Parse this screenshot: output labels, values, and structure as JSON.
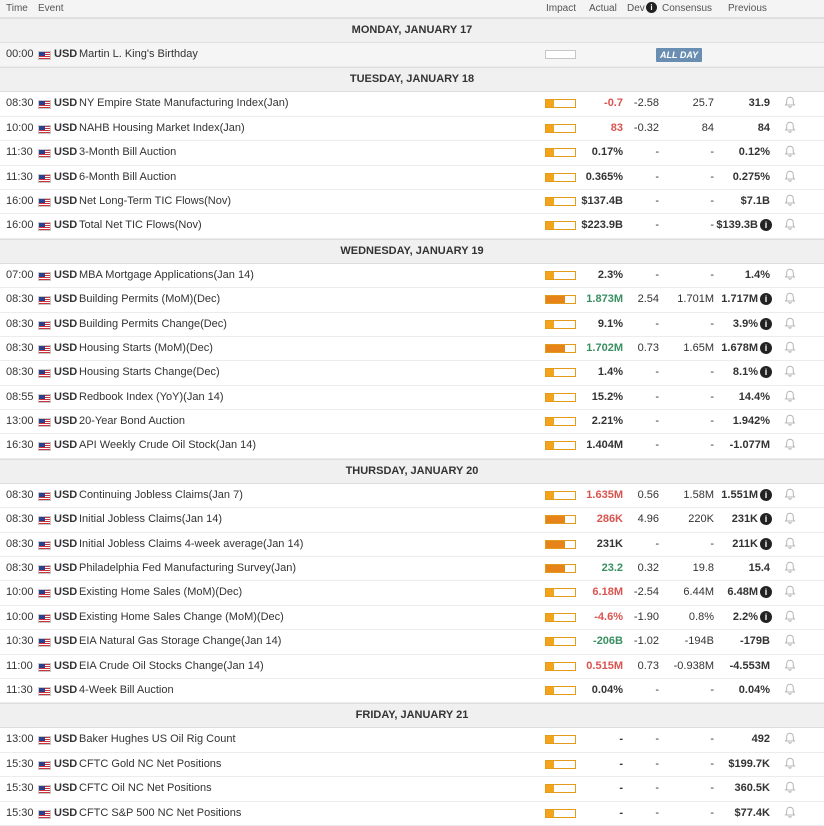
{
  "header": {
    "time": "Time",
    "event": "Event",
    "impact": "Impact",
    "actual": "Actual",
    "dev": "Dev",
    "consensus": "Consensus",
    "previous": "Previous"
  },
  "days": [
    {
      "label": "MONDAY, JANUARY 17",
      "events": [
        {
          "time": "00:00",
          "currency": "USD",
          "event": "Martin L. King's Birthday",
          "impact": "none",
          "allday": "ALL DAY",
          "bell": false
        }
      ]
    },
    {
      "label": "TUESDAY, JANUARY 18",
      "events": [
        {
          "time": "08:30",
          "currency": "USD",
          "event": "NY Empire State Manufacturing Index(Jan)",
          "impact": "low",
          "actual": "-0.7",
          "actual_color": "red",
          "dev": "-2.58",
          "consensus": "25.7",
          "previous": "31.9",
          "bell": true
        },
        {
          "time": "10:00",
          "currency": "USD",
          "event": "NAHB Housing Market Index(Jan)",
          "impact": "low",
          "actual": "83",
          "actual_color": "red",
          "dev": "-0.32",
          "consensus": "84",
          "previous": "84",
          "bell": true
        },
        {
          "time": "11:30",
          "currency": "USD",
          "event": "3-Month Bill Auction",
          "impact": "low",
          "actual": "0.17%",
          "actual_color": "black",
          "dev": "-",
          "consensus": "-",
          "previous": "0.12%",
          "bell": true
        },
        {
          "time": "11:30",
          "currency": "USD",
          "event": "6-Month Bill Auction",
          "impact": "low",
          "actual": "0.365%",
          "actual_color": "black",
          "dev": "-",
          "consensus": "-",
          "previous": "0.275%",
          "bell": true
        },
        {
          "time": "16:00",
          "currency": "USD",
          "event": "Net Long-Term TIC Flows(Nov)",
          "impact": "low",
          "actual": "$137.4B",
          "actual_color": "black",
          "dev": "-",
          "consensus": "-",
          "previous": "$7.1B",
          "bell": true
        },
        {
          "time": "16:00",
          "currency": "USD",
          "event": "Total Net TIC Flows(Nov)",
          "impact": "low",
          "actual": "$223.9B",
          "actual_color": "black",
          "dev": "-",
          "consensus": "-",
          "previous": "$139.3B",
          "info": true,
          "bell": true
        }
      ]
    },
    {
      "label": "WEDNESDAY, JANUARY 19",
      "events": [
        {
          "time": "07:00",
          "currency": "USD",
          "event": "MBA Mortgage Applications(Jan 14)",
          "impact": "low",
          "actual": "2.3%",
          "actual_color": "black",
          "dev": "-",
          "consensus": "-",
          "previous": "1.4%",
          "bell": true
        },
        {
          "time": "08:30",
          "currency": "USD",
          "event": "Building Permits (MoM)(Dec)",
          "impact": "med",
          "actual": "1.873M",
          "actual_color": "green",
          "dev": "2.54",
          "consensus": "1.701M",
          "previous": "1.717M",
          "info": true,
          "bell": true
        },
        {
          "time": "08:30",
          "currency": "USD",
          "event": "Building Permits Change(Dec)",
          "impact": "low",
          "actual": "9.1%",
          "actual_color": "black",
          "dev": "-",
          "consensus": "-",
          "previous": "3.9%",
          "info": true,
          "bell": true
        },
        {
          "time": "08:30",
          "currency": "USD",
          "event": "Housing Starts (MoM)(Dec)",
          "impact": "med",
          "actual": "1.702M",
          "actual_color": "green",
          "dev": "0.73",
          "consensus": "1.65M",
          "previous": "1.678M",
          "info": true,
          "bell": true
        },
        {
          "time": "08:30",
          "currency": "USD",
          "event": "Housing Starts Change(Dec)",
          "impact": "low",
          "actual": "1.4%",
          "actual_color": "black",
          "dev": "-",
          "consensus": "-",
          "previous": "8.1%",
          "info": true,
          "bell": true
        },
        {
          "time": "08:55",
          "currency": "USD",
          "event": "Redbook Index (YoY)(Jan 14)",
          "impact": "low",
          "actual": "15.2%",
          "actual_color": "black",
          "dev": "-",
          "consensus": "-",
          "previous": "14.4%",
          "bell": true
        },
        {
          "time": "13:00",
          "currency": "USD",
          "event": "20-Year Bond Auction",
          "impact": "low",
          "actual": "2.21%",
          "actual_color": "black",
          "dev": "-",
          "consensus": "-",
          "previous": "1.942%",
          "bell": true
        },
        {
          "time": "16:30",
          "currency": "USD",
          "event": "API Weekly Crude Oil Stock(Jan 14)",
          "impact": "low",
          "actual": "1.404M",
          "actual_color": "black",
          "dev": "-",
          "consensus": "-",
          "previous": "-1.077M",
          "bell": true
        }
      ]
    },
    {
      "label": "THURSDAY, JANUARY 20",
      "events": [
        {
          "time": "08:30",
          "currency": "USD",
          "event": "Continuing Jobless Claims(Jan 7)",
          "impact": "low",
          "actual": "1.635M",
          "actual_color": "red",
          "dev": "0.56",
          "consensus": "1.58M",
          "previous": "1.551M",
          "info": true,
          "bell": true
        },
        {
          "time": "08:30",
          "currency": "USD",
          "event": "Initial Jobless Claims(Jan 14)",
          "impact": "med",
          "actual": "286K",
          "actual_color": "red",
          "dev": "4.96",
          "consensus": "220K",
          "previous": "231K",
          "info": true,
          "bell": true
        },
        {
          "time": "08:30",
          "currency": "USD",
          "event": "Initial Jobless Claims 4-week average(Jan 14)",
          "impact": "med",
          "actual": "231K",
          "actual_color": "black",
          "dev": "-",
          "consensus": "-",
          "previous": "211K",
          "info": true,
          "bell": true
        },
        {
          "time": "08:30",
          "currency": "USD",
          "event": "Philadelphia Fed Manufacturing Survey(Jan)",
          "impact": "med",
          "actual": "23.2",
          "actual_color": "green",
          "dev": "0.32",
          "consensus": "19.8",
          "previous": "15.4",
          "bell": true
        },
        {
          "time": "10:00",
          "currency": "USD",
          "event": "Existing Home Sales (MoM)(Dec)",
          "impact": "low",
          "actual": "6.18M",
          "actual_color": "red",
          "dev": "-2.54",
          "consensus": "6.44M",
          "previous": "6.48M",
          "info": true,
          "bell": true
        },
        {
          "time": "10:00",
          "currency": "USD",
          "event": "Existing Home Sales Change (MoM)(Dec)",
          "impact": "low",
          "actual": "-4.6%",
          "actual_color": "red",
          "dev": "-1.90",
          "consensus": "0.8%",
          "previous": "2.2%",
          "info": true,
          "bell": true
        },
        {
          "time": "10:30",
          "currency": "USD",
          "event": "EIA Natural Gas Storage Change(Jan 14)",
          "impact": "low",
          "actual": "-206B",
          "actual_color": "green",
          "dev": "-1.02",
          "consensus": "-194B",
          "previous": "-179B",
          "bell": true
        },
        {
          "time": "11:00",
          "currency": "USD",
          "event": "EIA Crude Oil Stocks Change(Jan 14)",
          "impact": "low",
          "actual": "0.515M",
          "actual_color": "red",
          "dev": "0.73",
          "consensus": "-0.938M",
          "previous": "-4.553M",
          "bell": true
        },
        {
          "time": "11:30",
          "currency": "USD",
          "event": "4-Week Bill Auction",
          "impact": "low",
          "actual": "0.04%",
          "actual_color": "black",
          "dev": "-",
          "consensus": "-",
          "previous": "0.04%",
          "bell": true
        }
      ]
    },
    {
      "label": "FRIDAY, JANUARY 21",
      "events": [
        {
          "time": "13:00",
          "currency": "USD",
          "event": "Baker Hughes US Oil Rig Count",
          "impact": "low",
          "actual": "-",
          "actual_color": "black",
          "dev": "-",
          "consensus": "-",
          "previous": "492",
          "bell": true
        },
        {
          "time": "15:30",
          "currency": "USD",
          "event": "CFTC Gold NC Net Positions",
          "impact": "low",
          "actual": "-",
          "actual_color": "black",
          "dev": "-",
          "consensus": "-",
          "previous": "$199.7K",
          "bell": true
        },
        {
          "time": "15:30",
          "currency": "USD",
          "event": "CFTC Oil NC Net Positions",
          "impact": "low",
          "actual": "-",
          "actual_color": "black",
          "dev": "-",
          "consensus": "-",
          "previous": "360.5K",
          "bell": true
        },
        {
          "time": "15:30",
          "currency": "USD",
          "event": "CFTC S&P 500 NC Net Positions",
          "impact": "low",
          "actual": "-",
          "actual_color": "black",
          "dev": "-",
          "consensus": "-",
          "previous": "$77.4K",
          "bell": true
        }
      ]
    }
  ]
}
